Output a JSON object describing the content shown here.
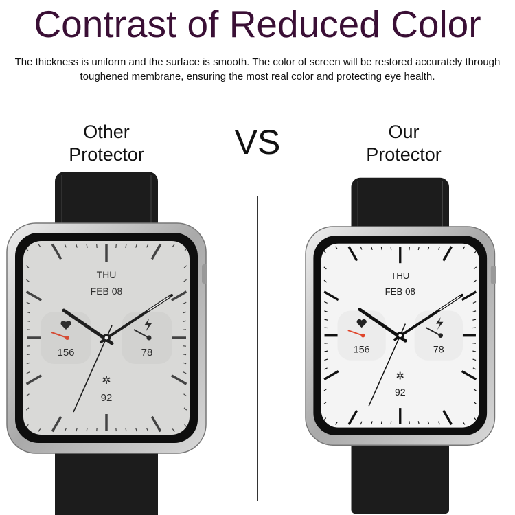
{
  "title": "Contrast of Reduced Color",
  "description": "The thickness is uniform and the surface is smooth. The color of screen will be restored accurately through toughened membrane, ensuring the most real color and protecting eye health.",
  "vs_label": "VS",
  "colors": {
    "title": "#3a0f35",
    "strap": "#1c1c1c",
    "heart_rate_hand": "#e0452b"
  },
  "watches": [
    {
      "label_line1": "Other",
      "label_line2": "Protector",
      "day": "THU",
      "date": "FEB 08",
      "heart_rate": "156",
      "battery": "78",
      "activity": "92",
      "screen_color": "#e4e4e2"
    },
    {
      "label_line1": "Our",
      "label_line2": "Protector",
      "day": "THU",
      "date": "FEB 08",
      "heart_rate": "156",
      "battery": "78",
      "activity": "92",
      "screen_color": "#f4f4f4"
    }
  ]
}
